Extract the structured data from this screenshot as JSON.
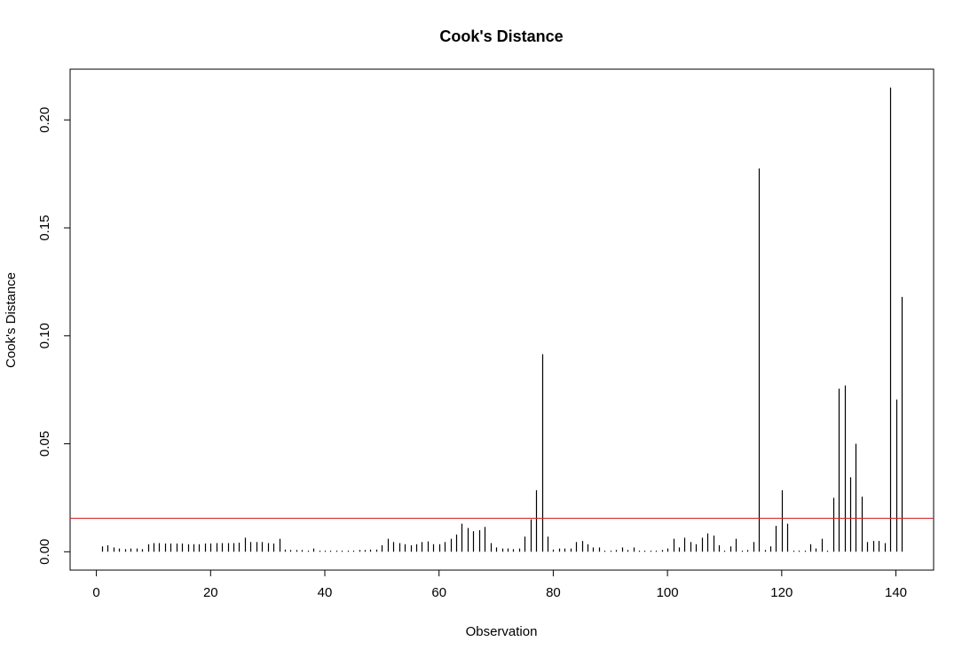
{
  "chart_data": {
    "type": "bar",
    "title": "Cook's Distance",
    "xlabel": "Observation",
    "ylabel": "Cook's Distance",
    "xlim": [
      -4.6,
      146.6
    ],
    "ylim": [
      -0.0085,
      0.2235
    ],
    "x_ticks": [
      0,
      20,
      40,
      60,
      80,
      100,
      120,
      140
    ],
    "y_ticks": [
      0.0,
      0.05,
      0.1,
      0.15,
      0.2
    ],
    "y_tick_labels": [
      "0.00",
      "0.05",
      "0.10",
      "0.15",
      "0.20"
    ],
    "threshold": 0.0155,
    "threshold_color": "#d62728",
    "grid": false,
    "x": [
      1,
      2,
      3,
      4,
      5,
      6,
      7,
      8,
      9,
      10,
      11,
      12,
      13,
      14,
      15,
      16,
      17,
      18,
      19,
      20,
      21,
      22,
      23,
      24,
      25,
      26,
      27,
      28,
      29,
      30,
      31,
      32,
      33,
      34,
      35,
      36,
      37,
      38,
      39,
      40,
      41,
      42,
      43,
      44,
      45,
      46,
      47,
      48,
      49,
      50,
      51,
      52,
      53,
      54,
      55,
      56,
      57,
      58,
      59,
      60,
      61,
      62,
      63,
      64,
      65,
      66,
      67,
      68,
      69,
      70,
      71,
      72,
      73,
      74,
      75,
      76,
      77,
      78,
      79,
      80,
      81,
      82,
      83,
      84,
      85,
      86,
      87,
      88,
      89,
      90,
      91,
      92,
      93,
      94,
      95,
      96,
      97,
      98,
      99,
      100,
      101,
      102,
      103,
      104,
      105,
      106,
      107,
      108,
      109,
      110,
      111,
      112,
      113,
      114,
      115,
      116,
      117,
      118,
      119,
      120,
      121,
      122,
      123,
      124,
      125,
      126,
      127,
      128,
      129,
      130,
      131,
      132,
      133,
      134,
      135,
      136,
      137,
      138,
      139,
      140,
      141
    ],
    "values": [
      0.0025,
      0.003,
      0.002,
      0.0015,
      0.0012,
      0.0015,
      0.0015,
      0.0012,
      0.0035,
      0.004,
      0.004,
      0.0038,
      0.0038,
      0.0038,
      0.0038,
      0.0035,
      0.0035,
      0.0035,
      0.0038,
      0.0038,
      0.004,
      0.004,
      0.004,
      0.004,
      0.0042,
      0.0065,
      0.0045,
      0.0045,
      0.0045,
      0.004,
      0.0038,
      0.006,
      0.001,
      0.0008,
      0.0008,
      0.0008,
      0.0005,
      0.0015,
      0.0005,
      0.0005,
      0.0005,
      0.0005,
      0.0005,
      0.0005,
      0.0005,
      0.0008,
      0.0008,
      0.001,
      0.001,
      0.003,
      0.006,
      0.0045,
      0.004,
      0.0035,
      0.003,
      0.0035,
      0.0045,
      0.0048,
      0.0035,
      0.0035,
      0.0045,
      0.006,
      0.008,
      0.013,
      0.011,
      0.0095,
      0.01,
      0.0115,
      0.004,
      0.002,
      0.0015,
      0.0015,
      0.0012,
      0.0015,
      0.007,
      0.015,
      0.0285,
      0.0915,
      0.007,
      0.001,
      0.0015,
      0.0015,
      0.0015,
      0.0045,
      0.005,
      0.0035,
      0.002,
      0.002,
      0.0005,
      0.0005,
      0.0008,
      0.002,
      0.0008,
      0.002,
      0.0005,
      0.0005,
      0.0005,
      0.0005,
      0.0008,
      0.0015,
      0.006,
      0.002,
      0.0065,
      0.0045,
      0.0035,
      0.0065,
      0.0085,
      0.0075,
      0.003,
      0.0005,
      0.0025,
      0.006,
      0.0005,
      0.0008,
      0.0045,
      0.1775,
      0.0008,
      0.0025,
      0.012,
      0.0285,
      0.013,
      0.0005,
      0.0005,
      0.0005,
      0.0035,
      0.0015,
      0.006,
      0.0005,
      0.025,
      0.0755,
      0.077,
      0.0345,
      0.05,
      0.0255,
      0.0045,
      0.005,
      0.005,
      0.004,
      0.215,
      0.0705,
      0.118
    ]
  }
}
